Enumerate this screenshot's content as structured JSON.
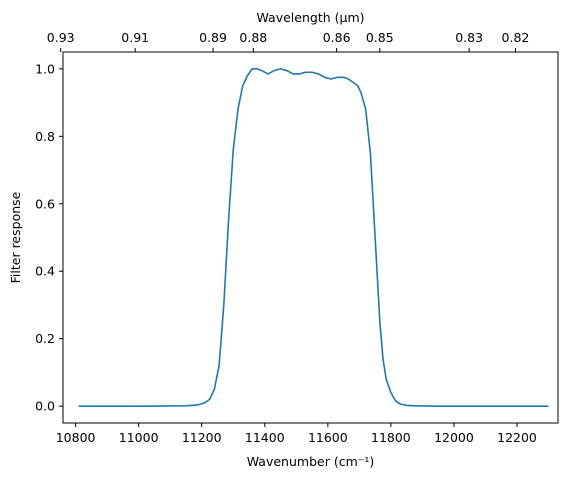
{
  "chart_data": {
    "type": "line",
    "title": "",
    "xlabel": "Wavenumber (cm⁻¹)",
    "ylabel": "Filter response",
    "top_xlabel": "Wavelength (μm)",
    "xlim": [
      10760,
      12330
    ],
    "ylim": [
      -0.05,
      1.05
    ],
    "grid": false,
    "xticks": [
      10800,
      11000,
      11200,
      11400,
      11600,
      11800,
      12000,
      12200
    ],
    "yticks": [
      0.0,
      0.2,
      0.4,
      0.6,
      0.8,
      1.0
    ],
    "ytick_labels": [
      "0.0",
      "0.2",
      "0.4",
      "0.6",
      "0.8",
      "1.0"
    ],
    "top_xticks_um": [
      0.93,
      0.91,
      0.89,
      0.88,
      0.86,
      0.85,
      0.83,
      0.82
    ],
    "top_xtick_labels": [
      "0.93",
      "0.91",
      "0.89",
      "0.88",
      "0.86",
      "0.85",
      "0.83",
      "0.82"
    ],
    "series": [
      {
        "color": "#1f77b4",
        "x": [
          10810,
          11000,
          11150,
          11190,
          11210,
          11225,
          11240,
          11255,
          11270,
          11285,
          11300,
          11315,
          11330,
          11345,
          11360,
          11375,
          11390,
          11410,
          11430,
          11450,
          11470,
          11490,
          11510,
          11530,
          11550,
          11570,
          11590,
          11610,
          11630,
          11650,
          11665,
          11680,
          11695,
          11705,
          11720,
          11735,
          11750,
          11765,
          11775,
          11785,
          11800,
          11815,
          11830,
          11850,
          11880,
          11950,
          12100,
          12300
        ],
        "y": [
          0.0,
          0.0,
          0.001,
          0.004,
          0.01,
          0.02,
          0.05,
          0.12,
          0.3,
          0.55,
          0.76,
          0.88,
          0.95,
          0.98,
          1.0,
          1.0,
          0.995,
          0.985,
          0.995,
          1.0,
          0.995,
          0.985,
          0.985,
          0.99,
          0.99,
          0.985,
          0.975,
          0.97,
          0.975,
          0.975,
          0.97,
          0.96,
          0.95,
          0.93,
          0.88,
          0.75,
          0.5,
          0.25,
          0.14,
          0.08,
          0.04,
          0.015,
          0.006,
          0.002,
          0.001,
          0.0,
          0.0,
          0.0
        ]
      }
    ]
  }
}
